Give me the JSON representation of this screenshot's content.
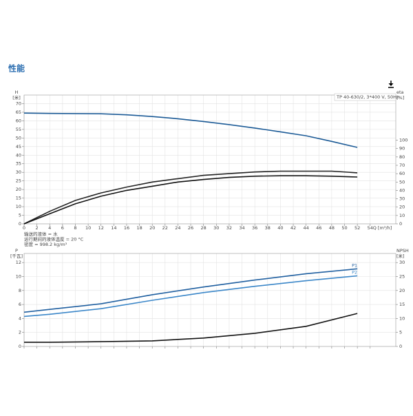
{
  "header": {
    "title": "性能"
  },
  "chart_data": [
    {
      "type": "line",
      "title": "TP 40-630/2, 3*400 V, 50Hz",
      "ylabel": "H",
      "yunit": "[米]",
      "y2label": "eta",
      "y2unit": "[%]",
      "xlabel": "Q [m³/h]",
      "notes": [
        "输送的液体 = 水",
        "运行期间的液体温度 = 20 °C",
        "密度 = 998.2 kg/m³"
      ],
      "xlim": [
        0,
        58
      ],
      "ylim": [
        0,
        75
      ],
      "y2lim": [
        0,
        154
      ],
      "xticks": [
        0,
        2,
        4,
        6,
        8,
        10,
        12,
        14,
        16,
        18,
        20,
        22,
        24,
        26,
        28,
        30,
        32,
        34,
        36,
        38,
        40,
        42,
        44,
        46,
        48,
        50,
        52,
        54
      ],
      "yticks": [
        0,
        5,
        10,
        15,
        20,
        25,
        30,
        35,
        40,
        45,
        50,
        55,
        60,
        65,
        70
      ],
      "y2ticks": [
        0,
        10,
        20,
        30,
        40,
        50,
        60,
        70,
        80,
        90,
        100
      ],
      "grid": true,
      "x": [
        0,
        4,
        8,
        12,
        16,
        20,
        24,
        28,
        32,
        36,
        40,
        44,
        48,
        52
      ],
      "series": [
        {
          "name": "H",
          "color": "#1b5a96",
          "values": [
            64.5,
            64.3,
            64.2,
            64.1,
            63.5,
            62.5,
            61.2,
            59.6,
            57.8,
            55.8,
            53.6,
            51.3,
            48.0,
            44.5
          ]
        },
        {
          "name": "eta",
          "color": "#222222",
          "axis": "y2",
          "values": [
            0,
            15,
            28,
            37,
            44,
            50,
            54,
            58,
            60,
            62,
            63,
            63,
            63,
            61
          ]
        },
        {
          "name": "eta",
          "color": "#111111",
          "axis": "y2",
          "values": [
            0,
            12,
            24,
            33,
            40,
            45,
            50,
            53,
            55.5,
            57,
            57.5,
            57.5,
            57,
            56
          ]
        }
      ]
    },
    {
      "type": "line",
      "ylabel": "P",
      "yunit": "[千瓦]",
      "y2label": "NPSH",
      "y2unit": "[米]",
      "xlim": [
        0,
        58
      ],
      "ylim": [
        0,
        13.3
      ],
      "y2lim": [
        0,
        33.25
      ],
      "yticks": [
        0,
        2,
        4,
        6,
        8,
        10,
        12
      ],
      "y2ticks": [
        0,
        5,
        10,
        15,
        20,
        25,
        30
      ],
      "grid": true,
      "legend": "line-end",
      "x": [
        0,
        4,
        12,
        20,
        28,
        36,
        44,
        52
      ],
      "series": [
        {
          "name": "P1",
          "color": "#1f5fa0",
          "values": [
            4.9,
            5.3,
            6.1,
            7.4,
            8.5,
            9.5,
            10.4,
            11.1
          ]
        },
        {
          "name": "P2",
          "color": "#3a86c8",
          "values": [
            4.3,
            4.6,
            5.4,
            6.6,
            7.7,
            8.6,
            9.4,
            10.1
          ]
        },
        {
          "name": "NPSH",
          "color": "#111111",
          "axis": "y2",
          "values": [
            1.5,
            1.5,
            1.7,
            2.0,
            3.0,
            4.7,
            7.2,
            11.8
          ]
        }
      ]
    }
  ]
}
